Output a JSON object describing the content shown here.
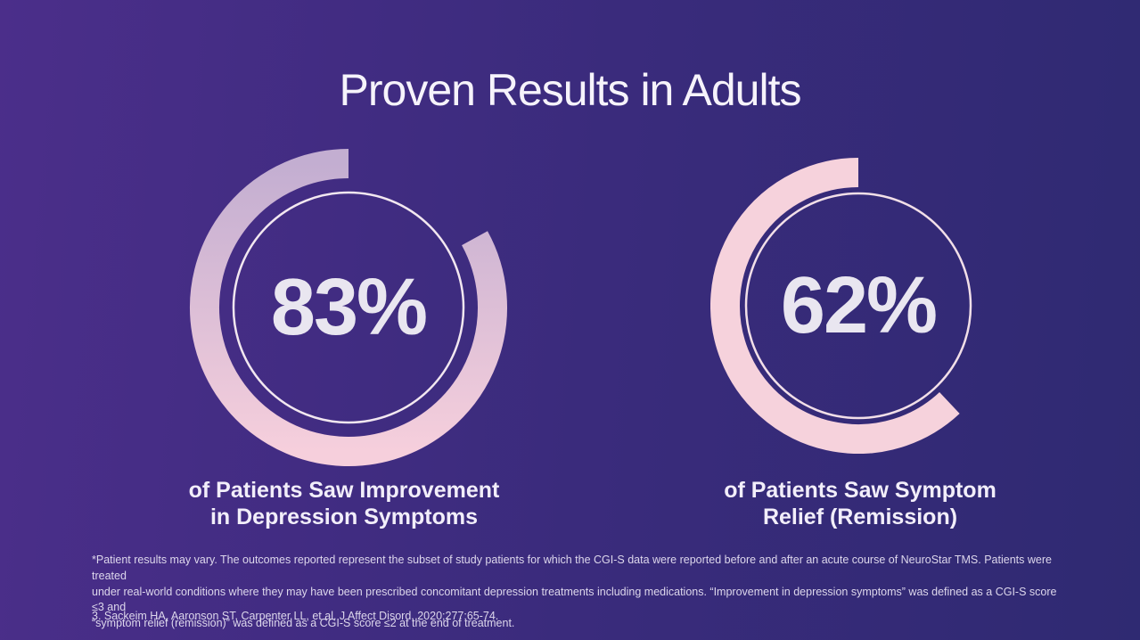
{
  "title": "Proven Results in Adults",
  "colors": {
    "background_left": "#4b2e8a",
    "background_right": "#2f2a72",
    "ring_pink": "#f6d2dc",
    "ring_lavender": "#c3aed1",
    "text_light": "#f6f3fb"
  },
  "chart_data": [
    {
      "type": "donut",
      "percent": 83,
      "label": "83%",
      "caption_lines": [
        "of Patients Saw Improvement",
        "in Depression Symptoms"
      ],
      "size": 360,
      "outer_r": 178,
      "thickness": 33,
      "inner_circle_r": 129,
      "ring_gradient": [
        "#c3aed1",
        "#f6cfdc"
      ],
      "inner_circle_color": "#f2e7f0",
      "gap_position": "top-right"
    },
    {
      "type": "donut",
      "percent": 62,
      "label": "62%",
      "caption_lines": [
        "of Patients Saw Symptom",
        "Relief (Remission)"
      ],
      "size": 332,
      "outer_r": 166,
      "thickness": 33,
      "inner_circle_r": 126,
      "ring_gradient": [
        "#f6d2dc",
        "#f6d2dc"
      ],
      "inner_circle_color": "#f2dfe8",
      "gap_position": "right"
    }
  ],
  "footnote": {
    "lines": [
      "*Patient results may vary. The outcomes reported represent the subset of study patients for which the CGI-S data were reported before and after an acute course of NeuroStar TMS. Patients were treated",
      "under real-world conditions where they may have been prescribed concomitant depression treatments including medications. “Improvement in depression symptoms” was defined as a CGI-S score ≤3 and",
      "“symptom relief (remission)” was defined as a CGI-S score ≤2 at the end of treatment."
    ]
  },
  "citation": "3. Sackeim HA, Aaronson ST, Carpenter LL, et al. J Affect Disord. 2020;277:65-74."
}
